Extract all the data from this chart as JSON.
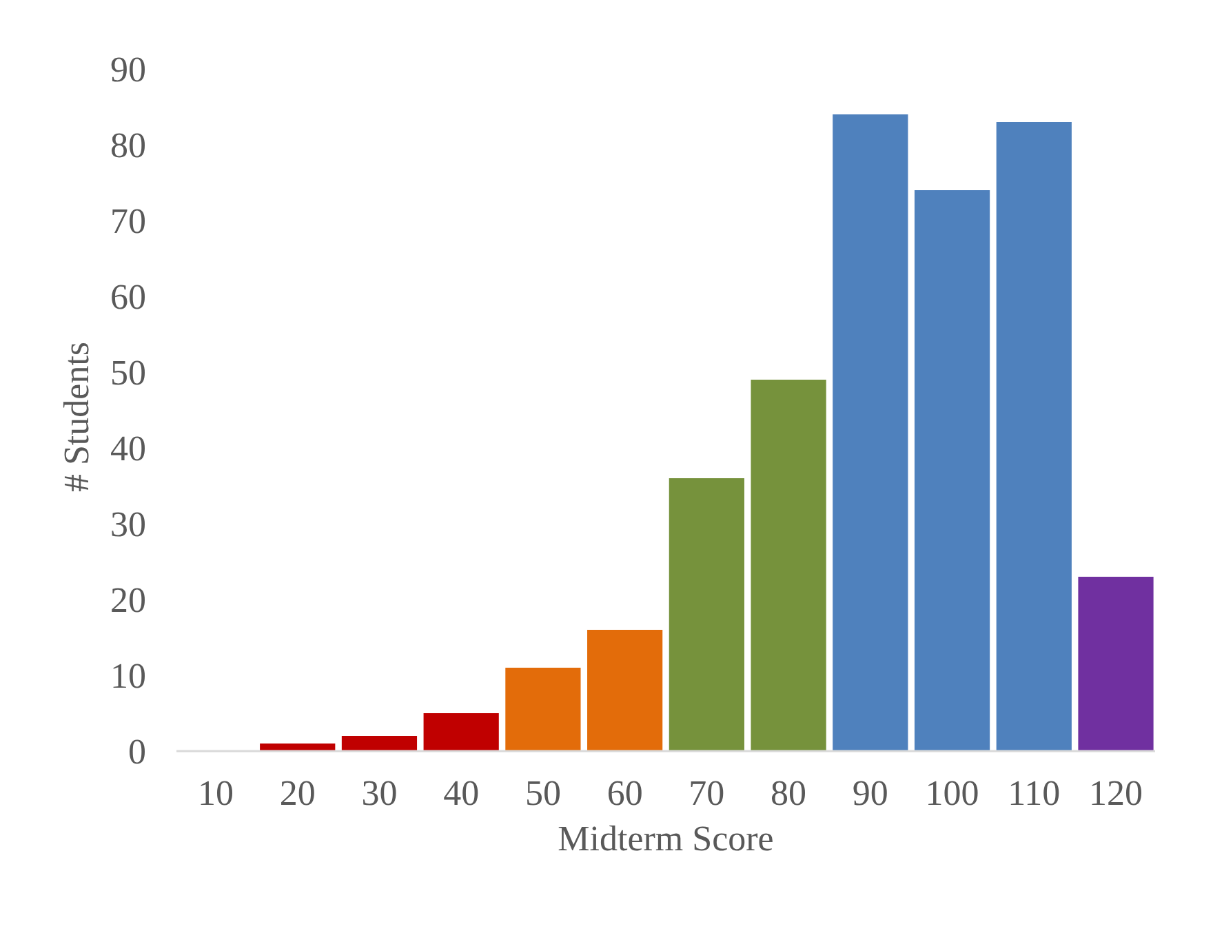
{
  "chart_data": {
    "type": "bar",
    "xlabel": "Midterm Score",
    "ylabel": "# Students",
    "categories": [
      "10",
      "20",
      "30",
      "40",
      "50",
      "60",
      "70",
      "80",
      "90",
      "100",
      "110",
      "120"
    ],
    "values": [
      0,
      1,
      2,
      5,
      11,
      16,
      36,
      49,
      84,
      74,
      83,
      23
    ],
    "colors": [
      "#c00000",
      "#c00000",
      "#c00000",
      "#c00000",
      "#e36c0a",
      "#e36c0a",
      "#76923c",
      "#76923c",
      "#4f81bd",
      "#4f81bd",
      "#4f81bd",
      "#7030a0"
    ],
    "ylim": [
      0,
      90
    ],
    "yticks": [
      0,
      10,
      20,
      30,
      40,
      50,
      60,
      70,
      80,
      90
    ],
    "grid": false
  }
}
